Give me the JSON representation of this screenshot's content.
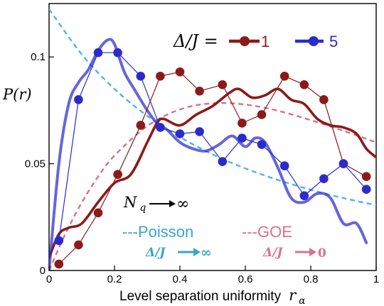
{
  "chart_data": {
    "type": "line",
    "xlabel": "Level separation uniformity",
    "xlabel_symbol": "r",
    "xlabel_symbol_sub": "α",
    "ylabel": "P(r)",
    "xlim": [
      0,
      1
    ],
    "ylim": [
      0,
      0.125
    ],
    "xticks": [
      "0",
      "0.2",
      "0.4",
      "0.6",
      "0.8",
      "1"
    ],
    "yticks": [
      "0",
      "0.05",
      "0.1"
    ],
    "legend": {
      "title": "Δ/J =",
      "placement": "top-right"
    },
    "series": [
      {
        "name": "1",
        "color": "#8b1a1a",
        "markers": {
          "x": [
            0.03,
            0.09,
            0.15,
            0.21,
            0.28,
            0.34,
            0.4,
            0.46,
            0.53,
            0.59,
            0.65,
            0.72,
            0.78,
            0.84,
            0.9,
            0.97
          ],
          "y": [
            0.003,
            0.012,
            0.027,
            0.045,
            0.068,
            0.091,
            0.093,
            0.084,
            0.087,
            0.069,
            0.073,
            0.091,
            0.087,
            0.08,
            0.05,
            0.044
          ]
        },
        "smooth": {
          "x": [
            0.0,
            0.03,
            0.06,
            0.1,
            0.15,
            0.2,
            0.25,
            0.3,
            0.33,
            0.35,
            0.4,
            0.45,
            0.5,
            0.55,
            0.58,
            0.62,
            0.66,
            0.7,
            0.74,
            0.78,
            0.82,
            0.86,
            0.9,
            0.94,
            0.97,
            1.0
          ],
          "y": [
            0.006,
            0.017,
            0.02,
            0.022,
            0.032,
            0.041,
            0.045,
            0.06,
            0.069,
            0.071,
            0.068,
            0.073,
            0.077,
            0.083,
            0.085,
            0.081,
            0.082,
            0.085,
            0.08,
            0.078,
            0.071,
            0.068,
            0.067,
            0.064,
            0.057,
            0.053
          ]
        }
      },
      {
        "name": "5",
        "color": "#2b2bcc",
        "markers": {
          "x": [
            0.03,
            0.09,
            0.15,
            0.21,
            0.28,
            0.34,
            0.4,
            0.46,
            0.53,
            0.59,
            0.65,
            0.72,
            0.78,
            0.84,
            0.9,
            0.97
          ],
          "y": [
            0.014,
            0.08,
            0.102,
            0.102,
            0.091,
            0.067,
            0.064,
            0.065,
            0.051,
            0.062,
            0.059,
            0.049,
            0.035,
            0.043,
            0.05,
            0.038
          ]
        },
        "smooth": {
          "x": [
            0.0,
            0.03,
            0.06,
            0.09,
            0.12,
            0.15,
            0.18,
            0.2,
            0.23,
            0.26,
            0.3,
            0.33,
            0.36,
            0.4,
            0.44,
            0.48,
            0.52,
            0.56,
            0.6,
            0.63,
            0.66,
            0.7,
            0.74,
            0.78,
            0.82,
            0.86,
            0.9,
            0.94,
            0.97
          ],
          "y": [
            0.0,
            0.05,
            0.078,
            0.088,
            0.094,
            0.103,
            0.108,
            0.106,
            0.093,
            0.085,
            0.075,
            0.069,
            0.066,
            0.06,
            0.057,
            0.056,
            0.059,
            0.063,
            0.058,
            0.062,
            0.06,
            0.048,
            0.034,
            0.032,
            0.036,
            0.034,
            0.022,
            0.022,
            0.013
          ]
        }
      },
      {
        "name": "Poisson",
        "color": "#4db5ee",
        "dashed": true,
        "formula": "2/(1+r)^2",
        "x": [
          0,
          0.1,
          0.2,
          0.3,
          0.4,
          0.5,
          0.6,
          0.7,
          0.8,
          0.9,
          1.0
        ],
        "y": [
          0.1224,
          0.1012,
          0.085,
          0.0724,
          0.0625,
          0.0544,
          0.0478,
          0.0424,
          0.0378,
          0.0339,
          0.0306
        ]
      },
      {
        "name": "GOE",
        "color": "#d9708c",
        "dashed": true,
        "formula": "r(1+r)/(1+r+r^2)^2.5",
        "x": [
          0,
          0.05,
          0.1,
          0.15,
          0.2,
          0.3,
          0.4,
          0.5,
          0.6,
          0.7,
          0.8,
          0.9,
          1.0
        ],
        "y": [
          0.0,
          0.0172,
          0.0318,
          0.044,
          0.0538,
          0.0676,
          0.0754,
          0.0783,
          0.0777,
          0.0748,
          0.0704,
          0.0654,
          0.06
        ]
      }
    ]
  },
  "annotations": {
    "limit_label": "N",
    "limit_sub": "q",
    "limit_arrow_target": "∞",
    "poisson_label": "---Poisson",
    "poisson_cond": "Δ/J",
    "poisson_cond_target": "∞",
    "goe_label": "---GOE",
    "goe_cond": "Δ/J",
    "goe_cond_target": "0",
    "legend_entry_1": "1",
    "legend_entry_2": "5"
  }
}
